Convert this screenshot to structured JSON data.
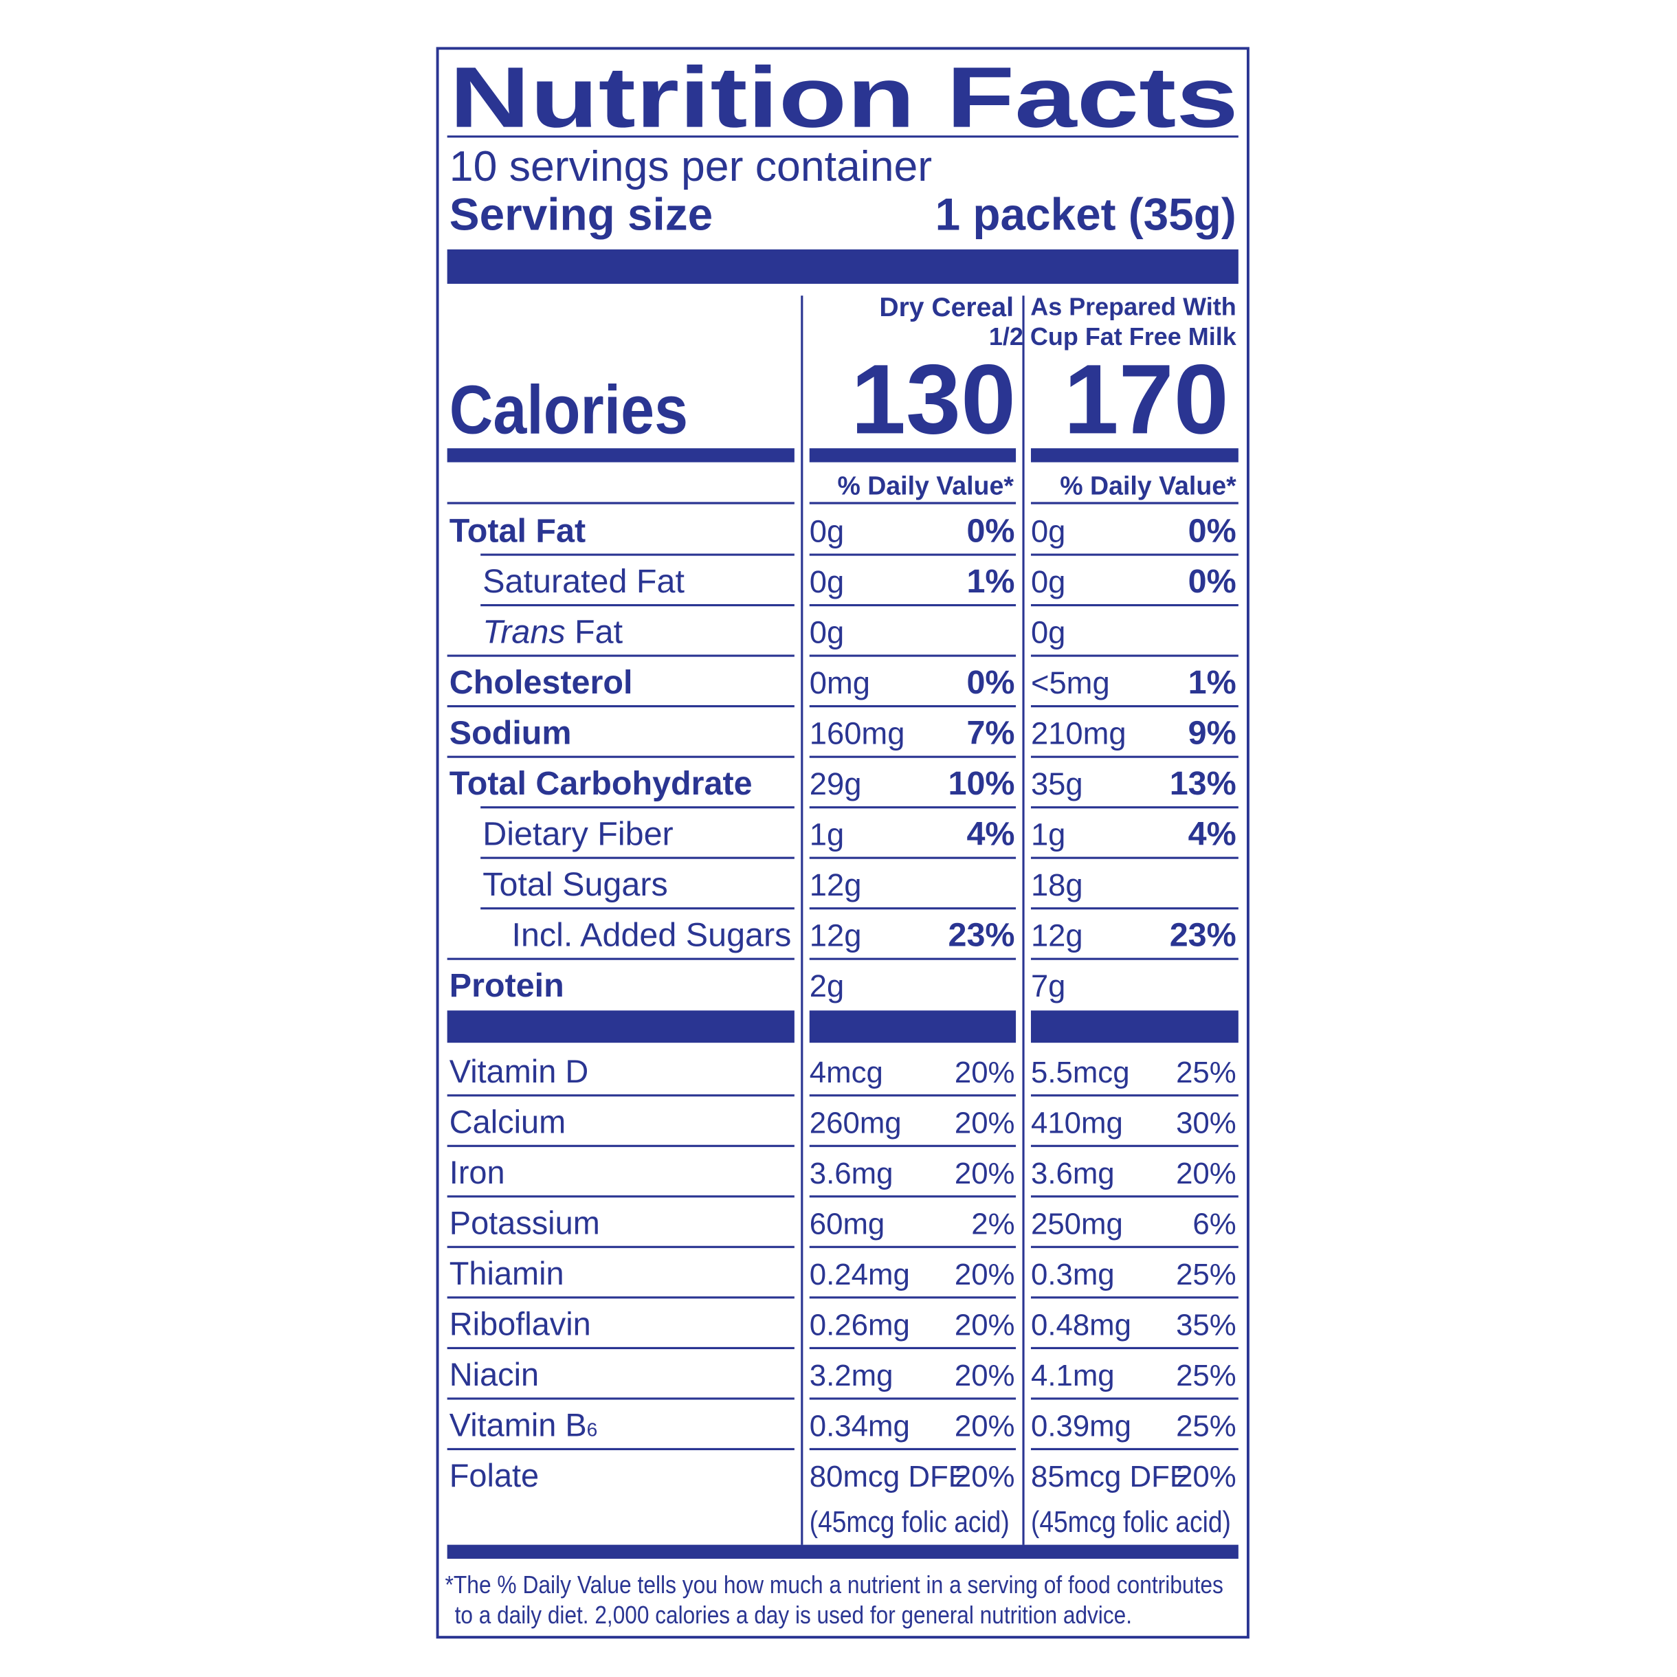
{
  "header": {
    "title": "Nutrition Facts",
    "servings": "10 servings per container",
    "serving_size_label": "Serving size",
    "serving_size": "1 packet (35g)"
  },
  "columns": {
    "dry": [
      "Dry Cereal"
    ],
    "prepared": [
      "As Prepared With",
      "1/2 Cup Fat Free Milk"
    ]
  },
  "calories": {
    "label": "Calories",
    "dry": "130",
    "prepared": "170"
  },
  "daily_value_header": "% Daily Value*",
  "nutrients": [
    {
      "name": [
        "Total Fat"
      ],
      "dry": {
        "amount": "0g",
        "dv": "0%"
      },
      "prepared": {
        "amount": "0g",
        "dv": "0%"
      }
    },
    {
      "name": [
        "Saturated Fat"
      ],
      "dry": {
        "amount": "0g",
        "dv": "1%"
      },
      "prepared": {
        "amount": "0g",
        "dv": "0%"
      }
    },
    {
      "name": [
        "Trans",
        " Fat"
      ],
      "dry": {
        "amount": "0g"
      },
      "prepared": {
        "amount": "0g"
      }
    },
    {
      "name": [
        "Cholesterol"
      ],
      "dry": {
        "amount": "0mg",
        "dv": "0%"
      },
      "prepared": {
        "amount": "<5mg",
        "dv": "1%"
      }
    },
    {
      "name": [
        "Sodium"
      ],
      "dry": {
        "amount": "160mg",
        "dv": "7%"
      },
      "prepared": {
        "amount": "210mg",
        "dv": "9%"
      }
    },
    {
      "name": [
        "Total Carbohydrate"
      ],
      "dry": {
        "amount": "29g",
        "dv": "10%"
      },
      "prepared": {
        "amount": "35g",
        "dv": "13%"
      }
    },
    {
      "name": [
        "Dietary Fiber"
      ],
      "dry": {
        "amount": "1g",
        "dv": "4%"
      },
      "prepared": {
        "amount": "1g",
        "dv": "4%"
      }
    },
    {
      "name": [
        "Total Sugars"
      ],
      "dry": {
        "amount": "12g"
      },
      "prepared": {
        "amount": "18g"
      }
    },
    {
      "name": [
        "Incl. Added Sugars"
      ],
      "dry": {
        "amount": "12g",
        "dv": "23%"
      },
      "prepared": {
        "amount": "12g",
        "dv": "23%"
      }
    },
    {
      "name": [
        "Protein"
      ],
      "dry": {
        "amount": "2g"
      },
      "prepared": {
        "amount": "7g"
      }
    }
  ],
  "vitamins": [
    {
      "name": [
        "Vitamin D"
      ],
      "dry": {
        "amount": "4mcg",
        "dv": "20%"
      },
      "prepared": {
        "amount": "5.5mcg",
        "dv": "25%"
      }
    },
    {
      "name": [
        "Calcium"
      ],
      "dry": {
        "amount": "260mg",
        "dv": "20%"
      },
      "prepared": {
        "amount": "410mg",
        "dv": "30%"
      }
    },
    {
      "name": [
        "Iron"
      ],
      "dry": {
        "amount": "3.6mg",
        "dv": "20%"
      },
      "prepared": {
        "amount": "3.6mg",
        "dv": "20%"
      }
    },
    {
      "name": [
        "Potassium"
      ],
      "dry": {
        "amount": "60mg",
        "dv": "2%"
      },
      "prepared": {
        "amount": "250mg",
        "dv": "6%"
      }
    },
    {
      "name": [
        "Thiamin"
      ],
      "dry": {
        "amount": "0.24mg",
        "dv": "20%"
      },
      "prepared": {
        "amount": "0.3mg",
        "dv": "25%"
      }
    },
    {
      "name": [
        "Riboflavin"
      ],
      "dry": {
        "amount": "0.26mg",
        "dv": "20%"
      },
      "prepared": {
        "amount": "0.48mg",
        "dv": "35%"
      }
    },
    {
      "name": [
        "Niacin"
      ],
      "dry": {
        "amount": "3.2mg",
        "dv": "20%"
      },
      "prepared": {
        "amount": "4.1mg",
        "dv": "25%"
      }
    },
    {
      "name": [
        "Vitamin B",
        "6"
      ],
      "dry": {
        "amount": "0.34mg",
        "dv": "20%"
      },
      "prepared": {
        "amount": "0.39mg",
        "dv": "25%"
      }
    },
    {
      "name": [
        "Folate"
      ],
      "dry": {
        "amount": "80mcg DFE",
        "dv": "20%",
        "note": "(45mcg folic acid)"
      },
      "prepared": {
        "amount": "85mcg DFE",
        "dv": "20%",
        "note": "(45mcg folic acid)"
      }
    }
  ],
  "footnote": [
    "*The % Daily Value tells you how much a nutrient in a serving of food contributes",
    "to a daily diet. 2,000 calories a day is used for general nutrition advice."
  ]
}
